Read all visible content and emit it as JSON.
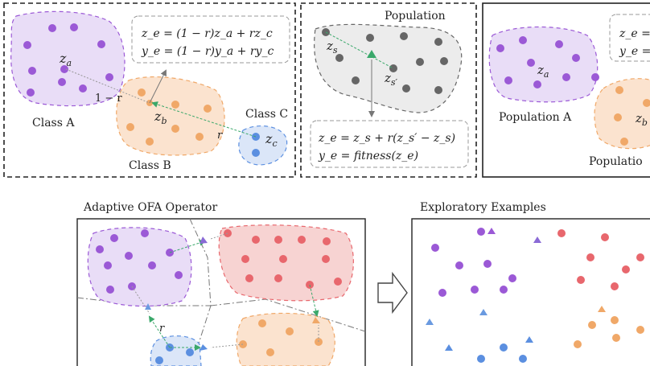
{
  "panel_interp": {
    "labels": {
      "class_a": "Class A",
      "class_b": "Class B",
      "class_c": "Class C"
    },
    "points": {
      "za": "z",
      "za_sub": "a",
      "zb": "z",
      "zb_sub": "b",
      "zc": "z",
      "zc_sub": "c"
    },
    "weights": {
      "one_minus_r": "1 − r",
      "r": "r"
    },
    "equations": [
      "z_e = (1 − r)z_a + rz_c",
      "y_e = (1 − r)y_a + ry_c"
    ]
  },
  "panel_population": {
    "title": "Population",
    "points": {
      "zs": "z",
      "zs_sub": "s",
      "zsp": "z",
      "zsp_sub": "s′"
    },
    "equations": [
      "z_e = z_s + r(z_s′ − z_s)",
      "y_e = fitness(z_e)"
    ]
  },
  "panel_right": {
    "label_a": "Population A",
    "label_b": "Populatio",
    "point_a": "z",
    "point_a_sub": "a",
    "point_b": "z",
    "point_b_sub": "b",
    "equations": [
      "z_e =",
      "y_e ="
    ]
  },
  "bottom_left": {
    "title": "Adaptive OFA Operator",
    "r_label": "r"
  },
  "bottom_right": {
    "title": "Exploratory Examples"
  },
  "colors": {
    "purple": "#9b59d6",
    "purple_fill": "#e9ddf7",
    "orange": "#f0a868",
    "orange_fill": "#fbe3cf",
    "blue": "#5b8fe0",
    "blue_fill": "#dbe6f8",
    "red": "#e8676d",
    "red_fill": "#f7d3d2",
    "gray": "#666666",
    "gray_fill": "#ececec",
    "green": "#3aa86a"
  }
}
